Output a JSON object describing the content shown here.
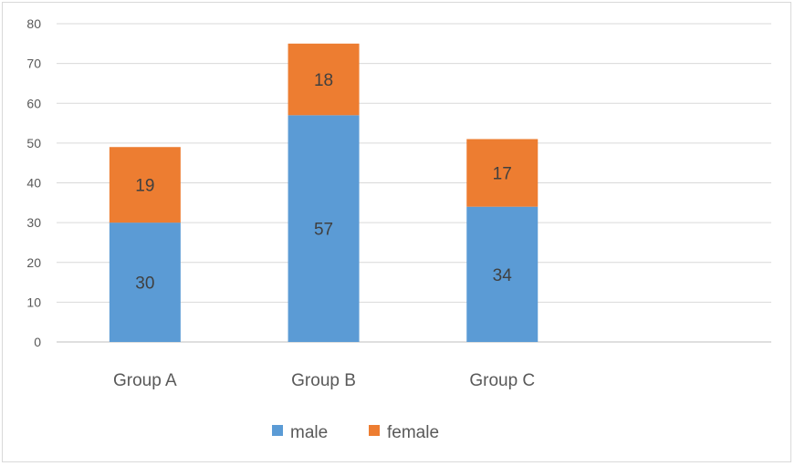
{
  "chart_data": {
    "type": "bar",
    "stacked": true,
    "categories": [
      "Group A",
      "Group B",
      "Group C"
    ],
    "series": [
      {
        "name": "male",
        "values": [
          30,
          57,
          34
        ],
        "color": "#5b9bd5"
      },
      {
        "name": "female",
        "values": [
          19,
          18,
          17
        ],
        "color": "#ed7d31"
      }
    ],
    "ylim": [
      0,
      80
    ],
    "yticks": [
      0,
      10,
      20,
      30,
      40,
      50,
      60,
      70,
      80
    ],
    "grid": true,
    "legend": "bottom",
    "data_labels": true
  }
}
